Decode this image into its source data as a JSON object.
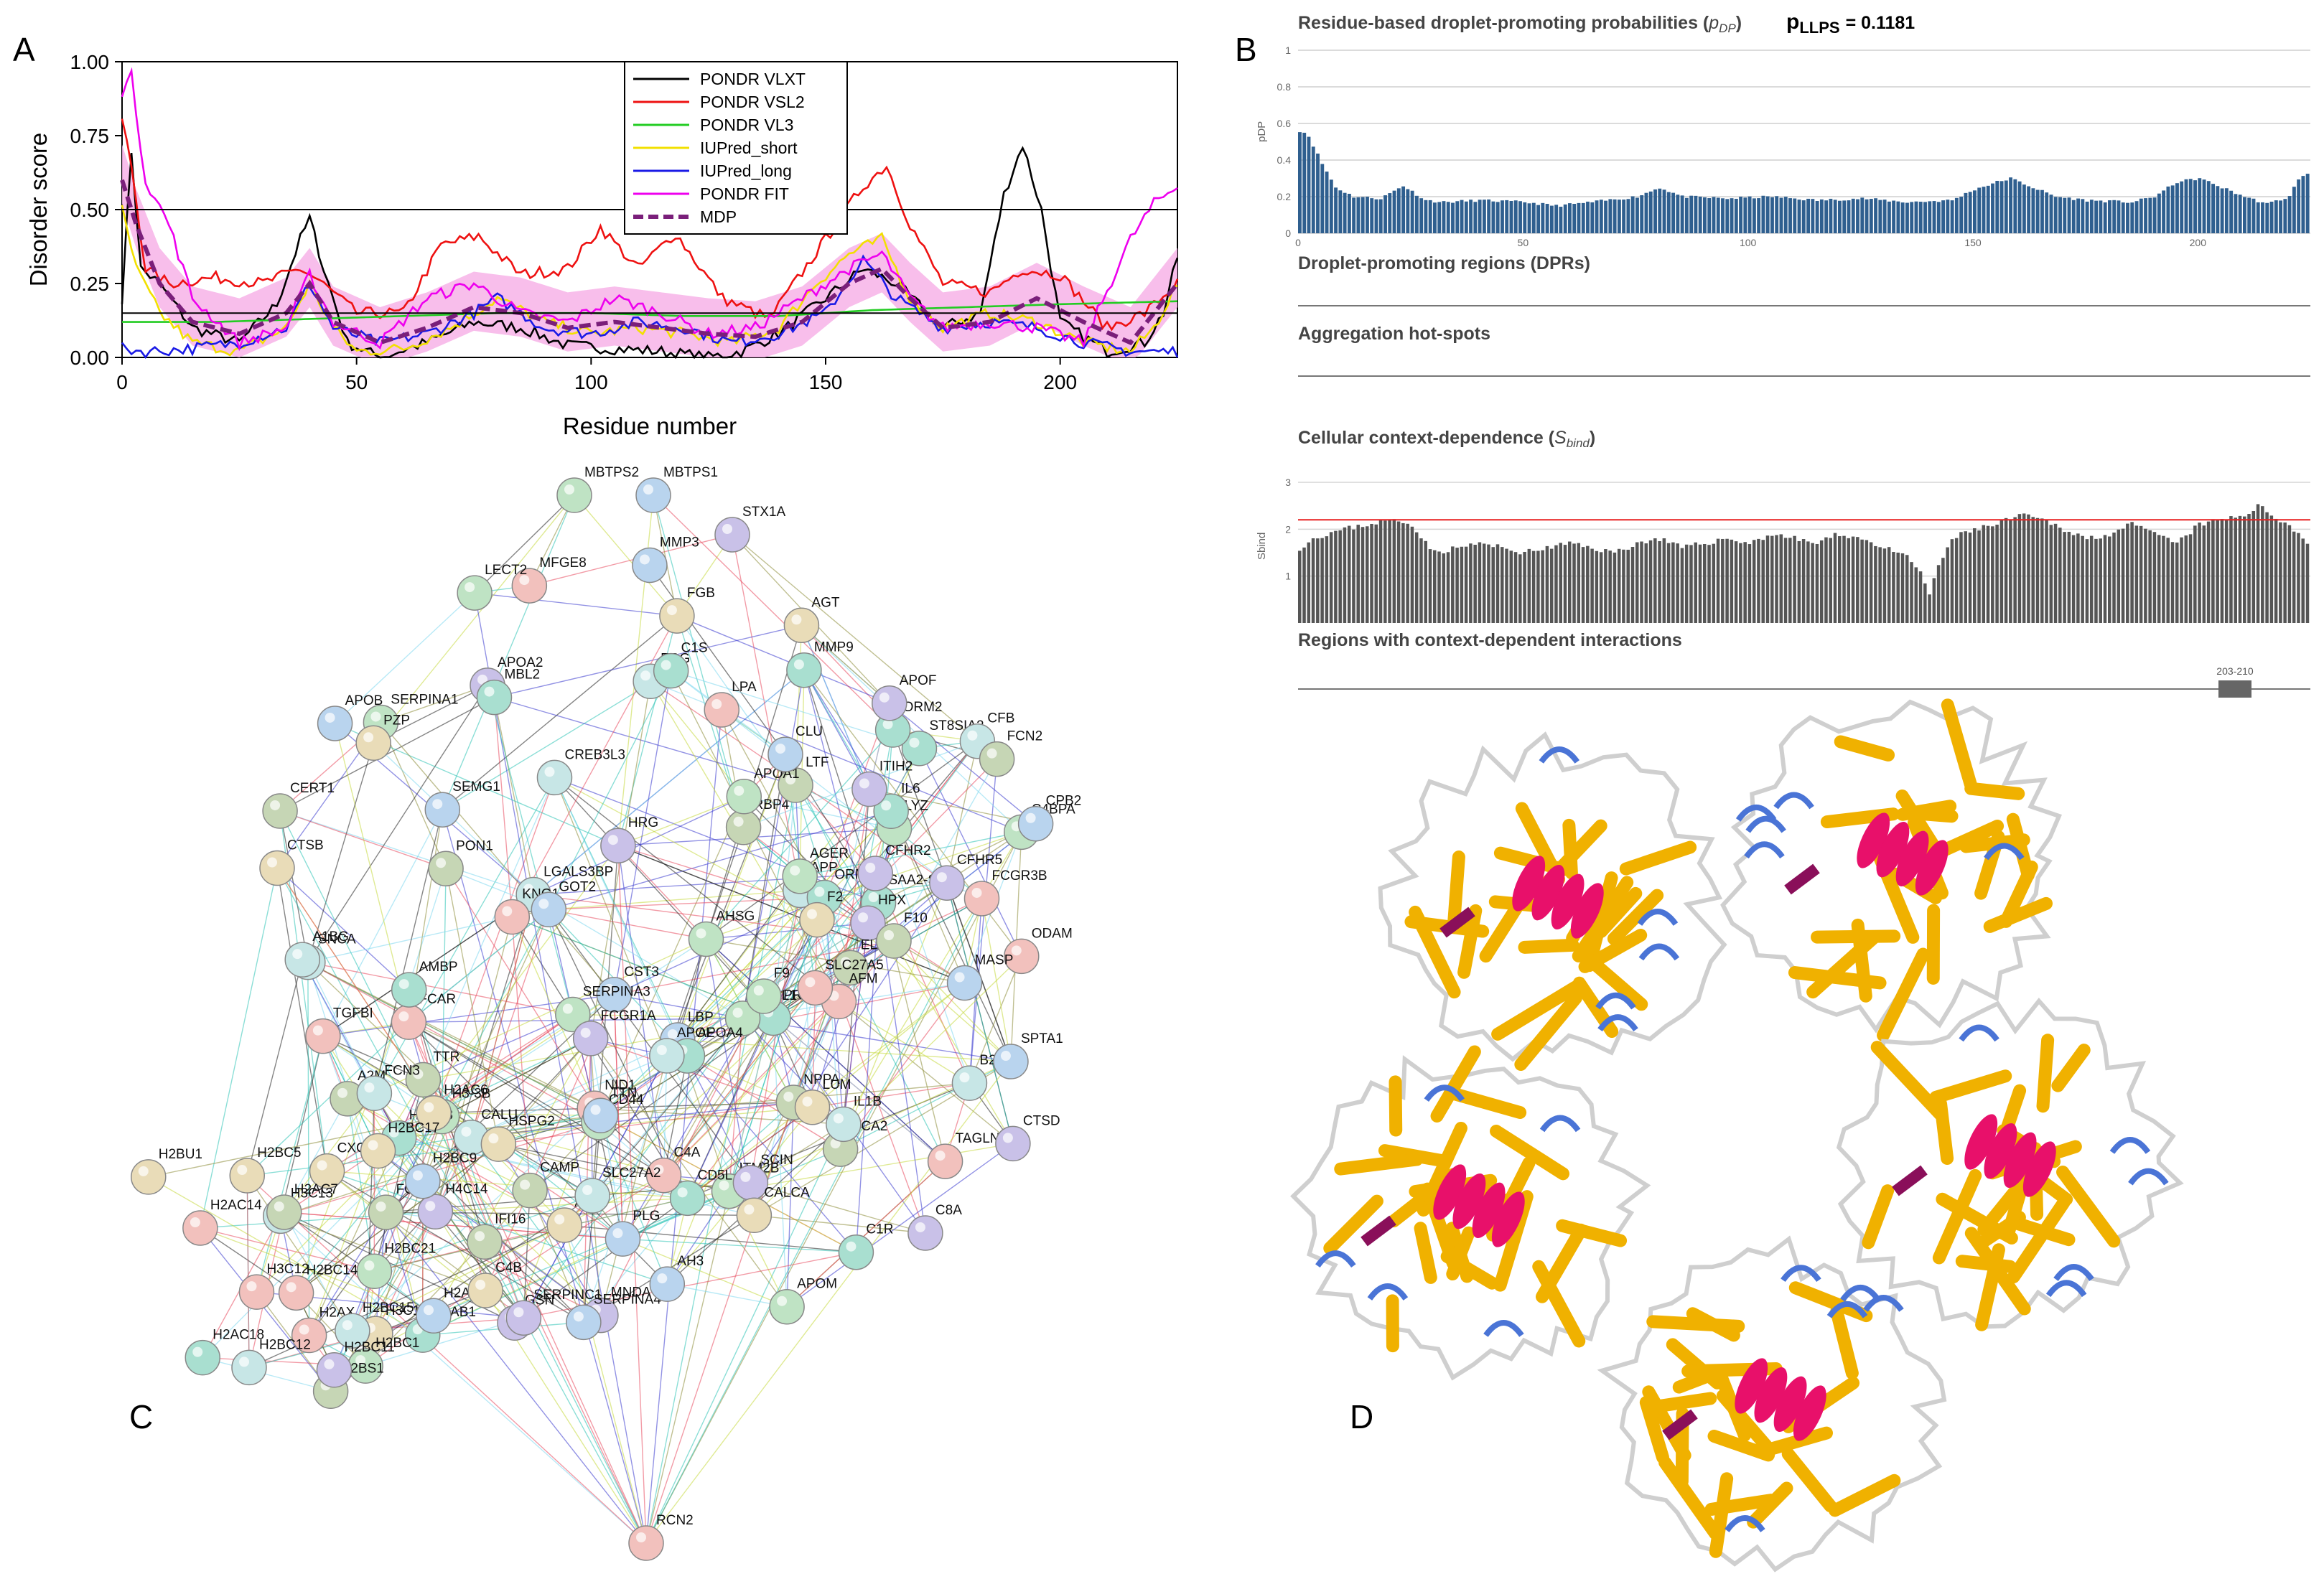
{
  "panels": {
    "a": "A",
    "b": "B",
    "c": "C",
    "d": "D"
  },
  "panel_a": {
    "legend": [
      {
        "label": "PONDR VLXT",
        "color": "#000000"
      },
      {
        "label": "PONDR VSL2",
        "color": "#ee1111"
      },
      {
        "label": "PONDR VL3",
        "color": "#22cc22"
      },
      {
        "label": "IUPred_short",
        "color": "#f2e000"
      },
      {
        "label": "IUPred_long",
        "color": "#1a1ae6"
      },
      {
        "label": "PONDR FIT",
        "color": "#ee00ee"
      },
      {
        "label": "MDP",
        "color": "#7a1f7a"
      }
    ],
    "band_color": "#f7b3e8"
  },
  "panel_b": {
    "title_main": "Residue-based droplet-promoting probabilities (",
    "title_sym": "p",
    "title_sub": "DP",
    "title_close": ")",
    "pllps_label": "p",
    "pllps_sub": "LLPS",
    "pllps_value": "= 0.1181",
    "dpr_heading": "Droplet-promoting regions (DPRs)",
    "agg_heading": "Aggregation hot-spots",
    "context_heading": "Cellular context-dependence (",
    "context_sym": "S",
    "context_sub": "bind",
    "context_close": ")",
    "regions_heading": "Regions with context-dependent interactions",
    "region_label": "203-210",
    "bar_color_top": "#2f5f8f",
    "bar_color_bottom": "#555555",
    "threshold_color": "#e82020"
  },
  "panel_c": {
    "nodes": [
      "MBTPS2",
      "MBTPS1",
      "STX1A",
      "ODAM",
      "ATF6",
      "CREB3L3",
      "CERT1",
      "ST8SIA2",
      "ITM2B",
      "SEMG1",
      "SCIN",
      "TAGLN2",
      "CALCA",
      "SNCA",
      "NPPA",
      "PRL",
      "LYZ",
      "CST3",
      "GSN",
      "TGFBI",
      "CXCL1",
      "CALU",
      "OCA2",
      "SAA2-SAA4",
      "APOL1",
      "LBP",
      "MNDA",
      "FCAR",
      "HSPG2",
      "B2M",
      "RBP4",
      "APOA4",
      "APOM",
      "MMP3",
      "CTSD",
      "MFGE8",
      "AGT",
      "APP",
      "PON1",
      "ORM2",
      "SERPINA3",
      "SERPINA4",
      "APOF",
      "NID1",
      "CTSB",
      "APOE",
      "TTR",
      "ORM1",
      "SERPINA1",
      "SPTA1",
      "FCGR1A",
      "FCGR3B",
      "LUM",
      "IL1B",
      "LTF",
      "IL6",
      "APOA1",
      "CLU",
      "APOA2",
      "LPA",
      "PZP",
      "A1BG",
      "IFI16",
      "MMP9",
      "CD44",
      "APOB",
      "HPX",
      "H2AX",
      "H2BU1",
      "LGALS3BP",
      "A2M",
      "AMBP",
      "AHSG",
      "AH3",
      "H4C14",
      "H3C12",
      "H3C14",
      "H3C13",
      "ELN",
      "CD5L",
      "H3-3B",
      "TTN",
      "SERPINC1",
      "AFM",
      "FGB",
      "FGG",
      "FGL1",
      "H2AB1",
      "H2BC1",
      "H2AC20",
      "ITIH2",
      "KNG1",
      "F2",
      "CFB",
      "H2AC7",
      "H2AC18",
      "AGER",
      "PLG",
      "HRG",
      "C4A",
      "C4B",
      "SLC27A2",
      "H2BS1",
      "H2BC3",
      "H2BC21",
      "GOT2",
      "C8A",
      "SLC27A5",
      "H2AC6",
      "H2BC15",
      "CAMP",
      "MBL2",
      "C4BPA",
      "CPB2",
      "CFHR2",
      "H2AC14",
      "H2BC17",
      "H2BC12",
      "F10",
      "C1S",
      "LECT2",
      "H2BC9",
      "H2BC11",
      "H2BC14",
      "H2BC5",
      "FCN3",
      "FCN2",
      "C1R",
      "F9",
      "MASP",
      "CFHR5",
      "RCN2"
    ],
    "node_colors": [
      "#bfe3c4",
      "#b9d4ee",
      "#c9c1e8",
      "#f2c1bd",
      "#e9dcb8",
      "#c7e6e6",
      "#c6d6b5",
      "#a9dfd0"
    ]
  },
  "panel_d": {
    "strand_color": "#f0b100",
    "helix_color": "#e8106a",
    "turn_color": "#4a74d6",
    "coil_color": "#cfcfcf",
    "beta_bridge_color": "#8a0f5a"
  },
  "chart_data": [
    {
      "type": "line",
      "title": "",
      "xlabel": "Residue number",
      "ylabel": "Disorder score",
      "xlim": [
        0,
        225
      ],
      "ylim": [
        0,
        1
      ],
      "xticks": [
        "0",
        "50",
        "100",
        "150",
        "200"
      ],
      "yticks": [
        "0.00",
        "0.25",
        "0.50",
        "0.75",
        "1.00"
      ],
      "threshold_lines": [
        0.5,
        0.15
      ],
      "series": [
        {
          "name": "PONDR VLXT",
          "x": [
            0,
            2,
            4,
            8,
            15,
            25,
            33,
            38,
            40,
            43,
            48,
            55,
            65,
            75,
            85,
            95,
            105,
            115,
            125,
            132,
            140,
            150,
            158,
            165,
            175,
            183,
            188,
            192,
            196,
            200,
            210,
            218,
            222,
            225
          ],
          "y": [
            0.2,
            0.7,
            0.3,
            0.25,
            0.1,
            0.05,
            0.18,
            0.4,
            0.47,
            0.3,
            0.05,
            0.0,
            0.05,
            0.12,
            0.1,
            0.04,
            0.03,
            0.02,
            0.0,
            0.02,
            0.08,
            0.2,
            0.3,
            0.25,
            0.1,
            0.15,
            0.55,
            0.72,
            0.5,
            0.12,
            0.02,
            0.05,
            0.15,
            0.34
          ]
        },
        {
          "name": "PONDR VSL2",
          "x": [
            0,
            2,
            5,
            10,
            20,
            30,
            38,
            42,
            50,
            60,
            68,
            76,
            85,
            95,
            102,
            110,
            118,
            128,
            138,
            150,
            158,
            163,
            168,
            175,
            185,
            192,
            200,
            210,
            218,
            225
          ],
          "y": [
            0.8,
            0.65,
            0.3,
            0.25,
            0.27,
            0.25,
            0.3,
            0.26,
            0.15,
            0.15,
            0.38,
            0.41,
            0.28,
            0.3,
            0.44,
            0.3,
            0.42,
            0.2,
            0.13,
            0.4,
            0.58,
            0.65,
            0.45,
            0.25,
            0.22,
            0.3,
            0.28,
            0.1,
            0.15,
            0.25
          ]
        },
        {
          "name": "PONDR VL3",
          "x": [
            0,
            20,
            40,
            60,
            80,
            100,
            120,
            140,
            160,
            180,
            200,
            225
          ],
          "y": [
            0.12,
            0.12,
            0.13,
            0.14,
            0.15,
            0.15,
            0.14,
            0.14,
            0.16,
            0.17,
            0.18,
            0.19
          ]
        },
        {
          "name": "IUPred_short",
          "x": [
            0,
            3,
            8,
            15,
            25,
            35,
            40,
            45,
            50,
            60,
            70,
            80,
            90,
            100,
            110,
            120,
            130,
            140,
            148,
            155,
            162,
            168,
            175,
            185,
            195,
            205,
            215,
            220,
            225
          ],
          "y": [
            0.5,
            0.3,
            0.15,
            0.05,
            0.02,
            0.1,
            0.25,
            0.1,
            0.02,
            0.03,
            0.1,
            0.2,
            0.12,
            0.08,
            0.1,
            0.08,
            0.05,
            0.1,
            0.25,
            0.35,
            0.4,
            0.2,
            0.1,
            0.15,
            0.12,
            0.05,
            0.02,
            0.1,
            0.25
          ]
        },
        {
          "name": "IUPred_long",
          "x": [
            0,
            5,
            15,
            25,
            35,
            40,
            45,
            55,
            65,
            75,
            80,
            90,
            100,
            110,
            120,
            130,
            140,
            150,
            158,
            165,
            175,
            185,
            195,
            205,
            215,
            225
          ],
          "y": [
            0.03,
            0.02,
            0.03,
            0.05,
            0.1,
            0.25,
            0.1,
            0.05,
            0.08,
            0.15,
            0.2,
            0.1,
            0.08,
            0.12,
            0.1,
            0.05,
            0.08,
            0.15,
            0.33,
            0.2,
            0.1,
            0.12,
            0.1,
            0.05,
            0.02,
            0.02
          ]
        },
        {
          "name": "PONDR FIT",
          "x": [
            0,
            2,
            5,
            10,
            15,
            25,
            35,
            40,
            45,
            55,
            65,
            75,
            85,
            95,
            105,
            115,
            125,
            135,
            145,
            155,
            162,
            168,
            175,
            185,
            195,
            205,
            215,
            220,
            225
          ],
          "y": [
            0.9,
            0.95,
            0.6,
            0.45,
            0.2,
            0.05,
            0.1,
            0.28,
            0.12,
            0.05,
            0.2,
            0.25,
            0.15,
            0.12,
            0.2,
            0.15,
            0.08,
            0.1,
            0.2,
            0.3,
            0.35,
            0.2,
            0.1,
            0.12,
            0.1,
            0.05,
            0.4,
            0.52,
            0.58
          ]
        },
        {
          "name": "MDP",
          "x": [
            0,
            3,
            8,
            15,
            25,
            35,
            40,
            45,
            55,
            65,
            75,
            85,
            95,
            105,
            115,
            125,
            135,
            145,
            155,
            162,
            168,
            175,
            185,
            195,
            205,
            215,
            225
          ],
          "y": [
            0.6,
            0.45,
            0.25,
            0.12,
            0.08,
            0.15,
            0.25,
            0.12,
            0.05,
            0.1,
            0.17,
            0.15,
            0.1,
            0.12,
            0.1,
            0.08,
            0.07,
            0.12,
            0.25,
            0.3,
            0.2,
            0.1,
            0.12,
            0.2,
            0.12,
            0.05,
            0.25
          ]
        }
      ]
    },
    {
      "type": "bar",
      "title": "Residue-based droplet-promoting probabilities",
      "ylabel": "pDP",
      "xlim": [
        0,
        225
      ],
      "ylim": [
        0,
        1
      ],
      "xticks": [
        "0",
        "50",
        "100",
        "150",
        "200"
      ],
      "yticks": [
        "0",
        "0.2",
        "0.4",
        "0.6",
        "0.8",
        "1"
      ],
      "control_x": [
        0,
        1,
        2,
        3,
        5,
        8,
        12,
        18,
        23,
        28,
        32,
        40,
        50,
        57,
        65,
        75,
        80,
        85,
        95,
        105,
        115,
        125,
        135,
        145,
        150,
        155,
        158,
        162,
        168,
        175,
        185,
        190,
        195,
        200,
        205,
        210,
        215,
        220,
        222,
        225
      ],
      "control_y": [
        0.56,
        0.55,
        0.53,
        0.48,
        0.38,
        0.25,
        0.2,
        0.19,
        0.26,
        0.18,
        0.17,
        0.18,
        0.17,
        0.15,
        0.17,
        0.2,
        0.25,
        0.2,
        0.19,
        0.2,
        0.18,
        0.19,
        0.17,
        0.18,
        0.24,
        0.28,
        0.3,
        0.26,
        0.2,
        0.18,
        0.17,
        0.2,
        0.28,
        0.3,
        0.25,
        0.2,
        0.16,
        0.2,
        0.3,
        0.33
      ]
    },
    {
      "type": "bar",
      "title": "Cellular context-dependence",
      "ylabel": "Sbind",
      "xlim": [
        0,
        225
      ],
      "ylim": [
        0,
        3
      ],
      "yticks": [
        "1",
        "2",
        "3"
      ],
      "threshold": 2.2,
      "control_x": [
        0,
        3,
        6,
        10,
        15,
        20,
        25,
        30,
        35,
        40,
        45,
        50,
        55,
        60,
        65,
        70,
        75,
        80,
        85,
        90,
        95,
        100,
        105,
        110,
        115,
        120,
        125,
        130,
        135,
        138,
        140,
        142,
        145,
        150,
        155,
        160,
        165,
        170,
        175,
        180,
        185,
        190,
        195,
        200,
        205,
        210,
        213,
        216,
        220,
        225
      ],
      "control_y": [
        1.6,
        1.8,
        1.9,
        2.0,
        2.1,
        2.2,
        2.1,
        1.5,
        1.6,
        1.7,
        1.6,
        1.5,
        1.6,
        1.7,
        1.6,
        1.5,
        1.7,
        1.8,
        1.6,
        1.7,
        1.8,
        1.7,
        1.9,
        1.8,
        1.7,
        1.9,
        1.8,
        1.6,
        1.4,
        1.1,
        0.6,
        1.2,
        1.8,
        2.0,
        2.1,
        2.3,
        2.2,
        2.0,
        1.8,
        1.9,
        2.1,
        1.9,
        1.7,
        2.1,
        2.2,
        2.3,
        2.5,
        2.3,
        2.1,
        1.6
      ]
    }
  ]
}
